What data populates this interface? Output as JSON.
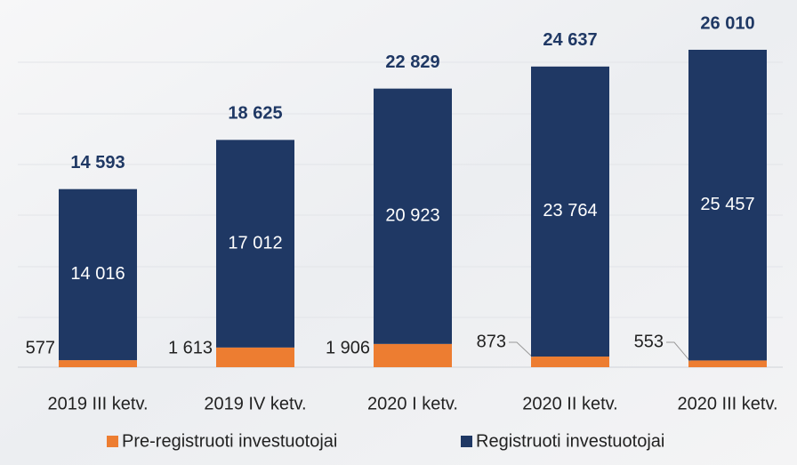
{
  "chart_data": {
    "type": "stacked-bar",
    "categories": [
      "2019 III ketv.",
      "2019 IV ketv.",
      "2020 I ketv.",
      "2020 II ketv.",
      "2020 III ketv."
    ],
    "series": [
      {
        "name": "Pre-registruoti investuotojai",
        "color": "#ed7d31",
        "values": [
          577,
          1613,
          1906,
          873,
          553
        ],
        "value_labels": [
          "577",
          "1 613",
          "1 906",
          "873",
          "553"
        ]
      },
      {
        "name": "Registruoti investuotojai",
        "color": "#1f3864",
        "values": [
          14016,
          17012,
          20923,
          23764,
          25457
        ],
        "value_labels": [
          "14 016",
          "17 012",
          "20 923",
          "23 764",
          "25 457"
        ]
      }
    ],
    "totals": [
      14593,
      18625,
      22829,
      24637,
      26010
    ],
    "total_labels": [
      "14 593",
      "18 625",
      "22 829",
      "24 637",
      "26 010"
    ],
    "legend": "bottom"
  }
}
